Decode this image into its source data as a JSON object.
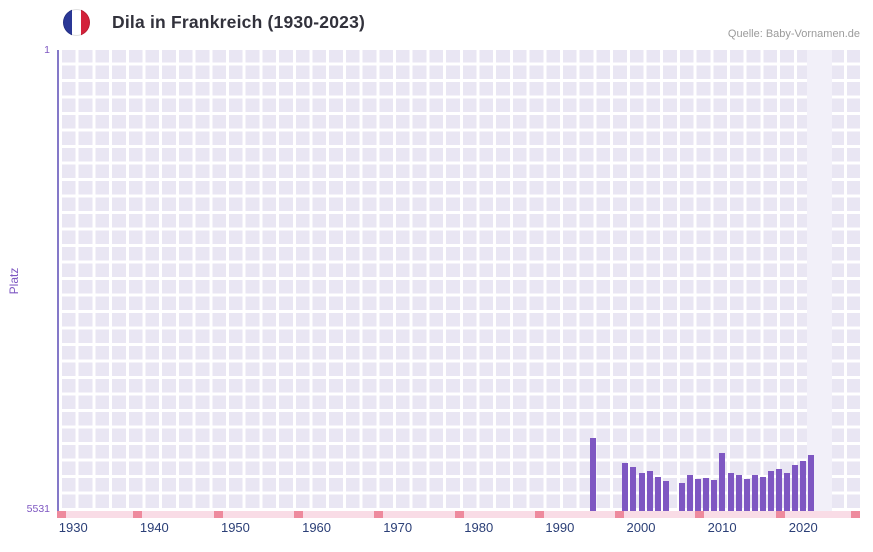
{
  "header": {
    "title": "Dila in Frankreich (1930-2023)",
    "source": "Quelle: Baby-Vornamen.de",
    "flag": "france-flag"
  },
  "colors": {
    "bar": "#7e57c2",
    "plot_bg": "#e9e6f3",
    "grid_line": "#ffffff",
    "band_bg": "#f2f0f9",
    "axis_line": "#8478c8",
    "strip_bg": "#f9dce6",
    "strip_tick": "#ee8a9d",
    "year_label": "#2b3f77",
    "purple_text": "#7e57c2",
    "title": "#32323c",
    "muted": "#9b9b9b",
    "flag_blue": "#2a3796",
    "flag_red": "#d3223a"
  },
  "chart_data": {
    "type": "bar",
    "title": "Dila in Frankreich (1930-2023)",
    "xlabel": "",
    "ylabel": "Platz",
    "y_axis": {
      "top_label": "1",
      "bottom_label": "5531",
      "inverted": true
    },
    "ylim": [
      1,
      5531
    ],
    "x_range": [
      1928,
      2027
    ],
    "x_ticks": [
      1930,
      1940,
      1950,
      1960,
      1970,
      1980,
      1990,
      2000,
      2010,
      2020
    ],
    "highlight_band": {
      "from": 2020.5,
      "to": 2023.5
    },
    "grid": true,
    "legend": "none",
    "points": [
      {
        "year": 1994,
        "rank": 4660
      },
      {
        "year": 1998,
        "rank": 4950
      },
      {
        "year": 1999,
        "rank": 5000
      },
      {
        "year": 2000,
        "rank": 5070
      },
      {
        "year": 2001,
        "rank": 5050
      },
      {
        "year": 2002,
        "rank": 5120
      },
      {
        "year": 2003,
        "rank": 5170
      },
      {
        "year": 2005,
        "rank": 5190
      },
      {
        "year": 2006,
        "rank": 5100
      },
      {
        "year": 2007,
        "rank": 5150
      },
      {
        "year": 2008,
        "rank": 5130
      },
      {
        "year": 2009,
        "rank": 5160
      },
      {
        "year": 2010,
        "rank": 4830
      },
      {
        "year": 2011,
        "rank": 5070
      },
      {
        "year": 2012,
        "rank": 5100
      },
      {
        "year": 2013,
        "rank": 5150
      },
      {
        "year": 2014,
        "rank": 5100
      },
      {
        "year": 2015,
        "rank": 5120
      },
      {
        "year": 2016,
        "rank": 5050
      },
      {
        "year": 2017,
        "rank": 5030
      },
      {
        "year": 2018,
        "rank": 5070
      },
      {
        "year": 2019,
        "rank": 4980
      },
      {
        "year": 2020,
        "rank": 4930
      },
      {
        "year": 2021,
        "rank": 4860
      }
    ]
  }
}
